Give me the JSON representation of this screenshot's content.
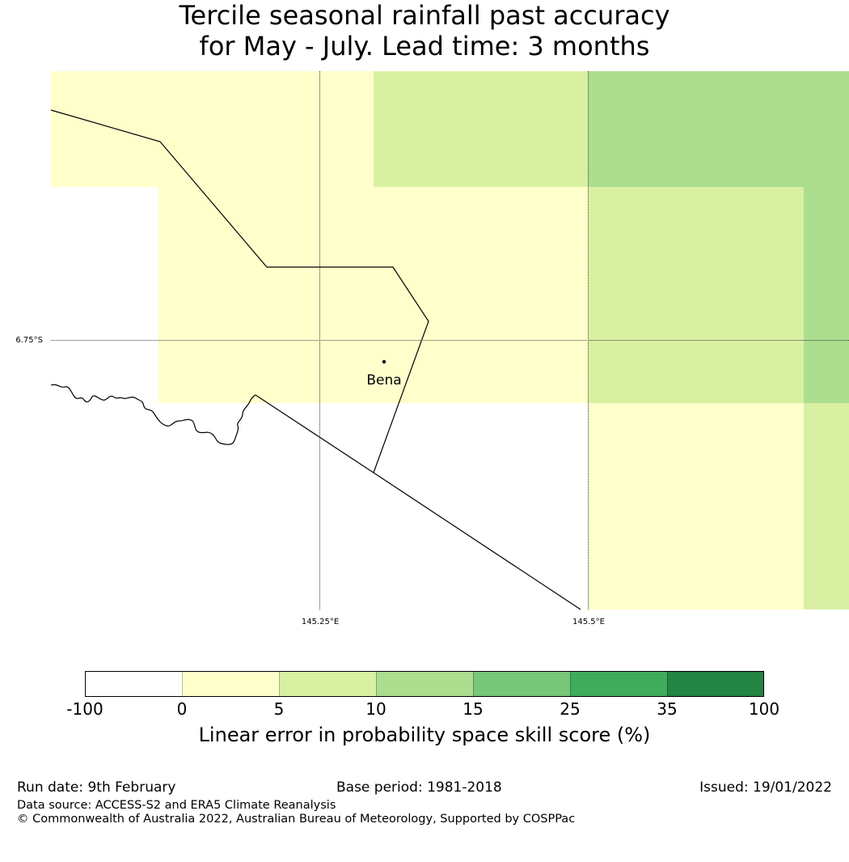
{
  "title": {
    "line1": "Tercile seasonal rainfall past accuracy",
    "line2": "for May - July. Lead time: 3 months"
  },
  "map": {
    "lat_label": "6.75°S",
    "lon_labels": [
      "145.25°E",
      "145.5°E"
    ],
    "place_name": "Bena",
    "region_colors": {
      "r0_5": "#ffffcc",
      "r5_10": "#d9f0a3",
      "r10_15": "#addd8e"
    }
  },
  "colorbar": {
    "ticks": [
      "-100",
      "0",
      "5",
      "10",
      "15",
      "25",
      "35",
      "100"
    ],
    "colors": [
      "#ffffff",
      "#ffffcc",
      "#d9f0a3",
      "#addd8e",
      "#78c679",
      "#41ab5d",
      "#238443"
    ],
    "label": "Linear error in probability space skill score (%)"
  },
  "footer": {
    "run_date": "Run date: 9th February",
    "base_period": "Base period: 1981-2018",
    "issued": "Issued: 19/01/2022",
    "data_source": "Data source: ACCESS-S2 and ERA5 Climate Reanalysis",
    "copyright": "© Commonwealth of Australia 2022, Australian Bureau of Meteorology, Supported by COSPPac"
  }
}
